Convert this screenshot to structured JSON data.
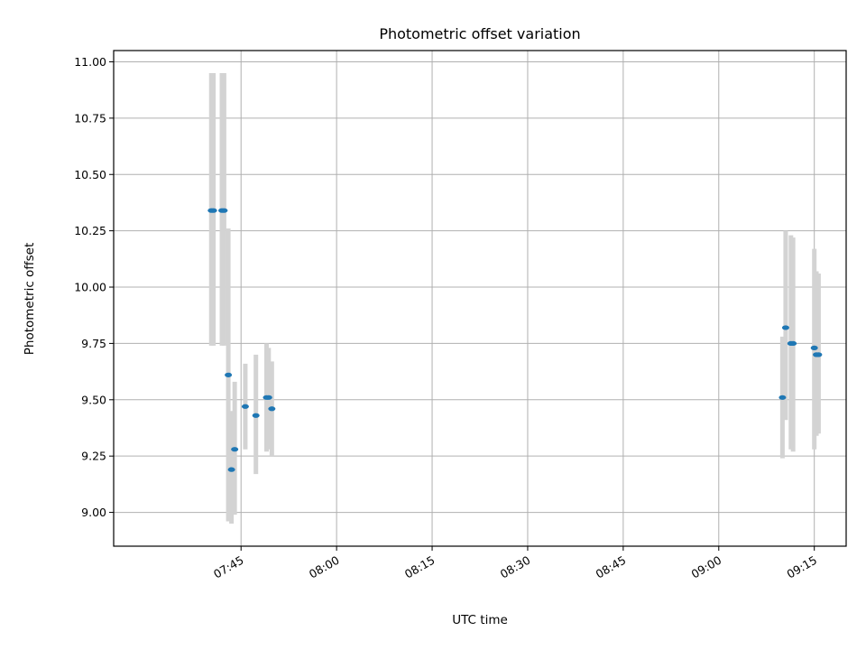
{
  "chart_data": {
    "type": "scatter",
    "title": "Photometric offset variation",
    "xlabel": "UTC time",
    "ylabel": "Photometric offset",
    "grid": true,
    "legend": "none",
    "ylim": [
      8.85,
      11.05
    ],
    "xlim": [
      "07:25",
      "09:20"
    ],
    "x_ticks": [
      "07:45",
      "08:00",
      "08:15",
      "08:30",
      "08:45",
      "09:00",
      "09:15"
    ],
    "y_ticks": [
      "9.00",
      "9.25",
      "9.50",
      "9.75",
      "10.00",
      "10.25",
      "10.50",
      "10.75",
      "11.00"
    ],
    "colors": {
      "point": "#1f77b4",
      "errorbar": "#d3d3d3",
      "grid": "#b0b0b0"
    },
    "points": [
      {
        "x": "07:40:20",
        "y": 10.34,
        "ylow": 9.74,
        "yhigh": 10.95
      },
      {
        "x": "07:40:40",
        "y": 10.34,
        "ylow": 9.74,
        "yhigh": 10.95
      },
      {
        "x": "07:42:00",
        "y": 10.34,
        "ylow": 9.74,
        "yhigh": 10.95
      },
      {
        "x": "07:42:20",
        "y": 10.34,
        "ylow": 9.74,
        "yhigh": 10.95
      },
      {
        "x": "07:43:00",
        "y": 9.61,
        "ylow": 8.96,
        "yhigh": 10.26
      },
      {
        "x": "07:43:30",
        "y": 9.19,
        "ylow": 8.95,
        "yhigh": 9.45
      },
      {
        "x": "07:44:00",
        "y": 9.28,
        "ylow": 8.99,
        "yhigh": 9.58
      },
      {
        "x": "07:45:40",
        "y": 9.47,
        "ylow": 9.28,
        "yhigh": 9.66
      },
      {
        "x": "07:47:20",
        "y": 9.43,
        "ylow": 9.17,
        "yhigh": 9.7
      },
      {
        "x": "07:49:00",
        "y": 9.51,
        "ylow": 9.27,
        "yhigh": 9.75
      },
      {
        "x": "07:49:20",
        "y": 9.51,
        "ylow": 9.28,
        "yhigh": 9.73
      },
      {
        "x": "07:49:50",
        "y": 9.46,
        "ylow": 9.25,
        "yhigh": 9.67
      },
      {
        "x": "09:10:00",
        "y": 9.51,
        "ylow": 9.24,
        "yhigh": 9.78
      },
      {
        "x": "09:10:30",
        "y": 9.82,
        "ylow": 9.41,
        "yhigh": 10.25
      },
      {
        "x": "09:11:20",
        "y": 9.75,
        "ylow": 9.28,
        "yhigh": 10.23
      },
      {
        "x": "09:11:40",
        "y": 9.75,
        "ylow": 9.27,
        "yhigh": 10.22
      },
      {
        "x": "09:15:00",
        "y": 9.73,
        "ylow": 9.28,
        "yhigh": 10.17
      },
      {
        "x": "09:15:20",
        "y": 9.7,
        "ylow": 9.34,
        "yhigh": 10.07
      },
      {
        "x": "09:15:40",
        "y": 9.7,
        "ylow": 9.35,
        "yhigh": 10.06
      }
    ]
  }
}
